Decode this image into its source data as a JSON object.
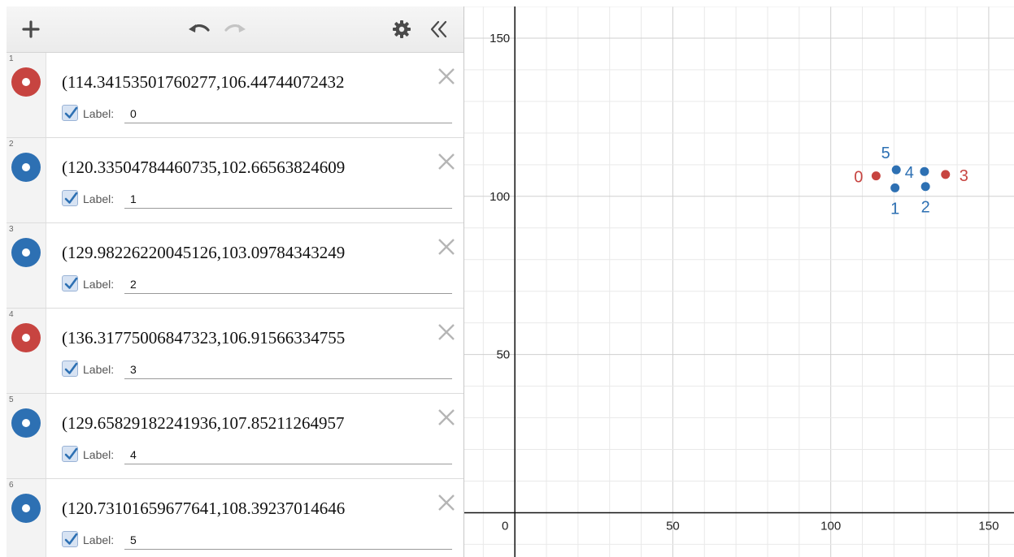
{
  "toolbar": {
    "add_icon": "plus-icon",
    "undo_icon": "undo-icon",
    "redo_icon": "redo-icon",
    "settings_icon": "gear-icon",
    "collapse_icon": "double-chevron-left-icon"
  },
  "expressions": [
    {
      "index": "1",
      "text": "(114.34153501760277,106.44744072432",
      "label_text": "Label:",
      "label": "0",
      "color": "#c74440",
      "x": 114.34153501760277,
      "y": 106.4474407243
    },
    {
      "index": "2",
      "text": "(120.33504784460735,102.66563824609",
      "label_text": "Label:",
      "label": "1",
      "color": "#2d70b3",
      "x": 120.33504784460735,
      "y": 102.6656382461
    },
    {
      "index": "3",
      "text": "(129.98226220045126,103.09784343249",
      "label_text": "Label:",
      "label": "2",
      "color": "#2d70b3",
      "x": 129.98226220045126,
      "y": 103.0978434325
    },
    {
      "index": "4",
      "text": "(136.31775006847323,106.91566334755",
      "label_text": "Label:",
      "label": "3",
      "color": "#c74440",
      "x": 136.31775006847323,
      "y": 106.9156633476
    },
    {
      "index": "5",
      "text": "(129.65829182241936,107.85211264957",
      "label_text": "Label:",
      "label": "4",
      "color": "#2d70b3",
      "x": 129.65829182241936,
      "y": 107.8521126496
    },
    {
      "index": "6",
      "text": "(120.73101659677641,108.39237014646",
      "label_text": "Label:",
      "label": "5",
      "color": "#2d70b3",
      "x": 120.73101659677641,
      "y": 108.3923701465
    }
  ],
  "graph": {
    "x_ticks": [
      "0",
      "50",
      "100",
      "150"
    ],
    "y_ticks": [
      "50",
      "100",
      "150"
    ],
    "xlim": [
      -16,
      158
    ],
    "ylim": [
      -14,
      160
    ],
    "grid": true
  }
}
